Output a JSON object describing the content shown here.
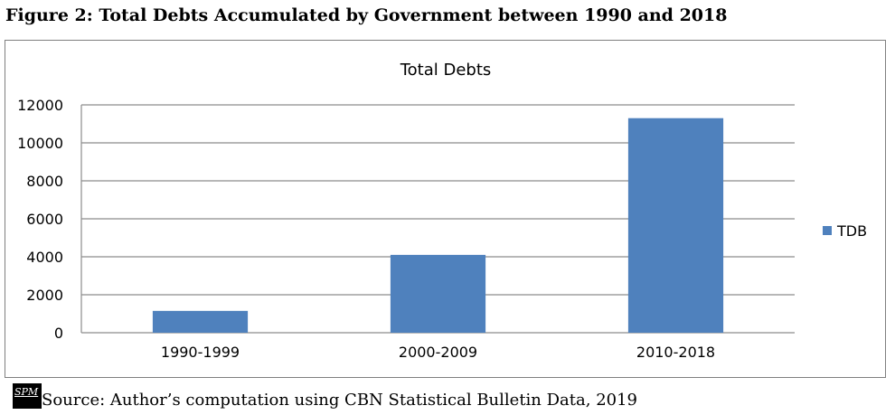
{
  "figure": {
    "title": "Figure 2: Total Debts Accumulated by Government between 1990 and 2018",
    "source": "Source: Author’s computation using CBN Statistical Bulletin Data, 2019",
    "logo_text": "SPM"
  },
  "colors": {
    "bar": "#4f81bd",
    "grid": "#8c8c8c",
    "axis": "#8c8c8c"
  },
  "chart_data": {
    "type": "bar",
    "title": "Total Debts",
    "categories": [
      "1990-1999",
      "2000-2009",
      "2010-2018"
    ],
    "series": [
      {
        "name": "TDB",
        "values": [
          1150,
          4100,
          11300
        ]
      }
    ],
    "ylim": [
      0,
      12000
    ],
    "yticks": [
      0,
      2000,
      4000,
      6000,
      8000,
      10000,
      12000
    ],
    "grid": true,
    "legend": "right"
  }
}
